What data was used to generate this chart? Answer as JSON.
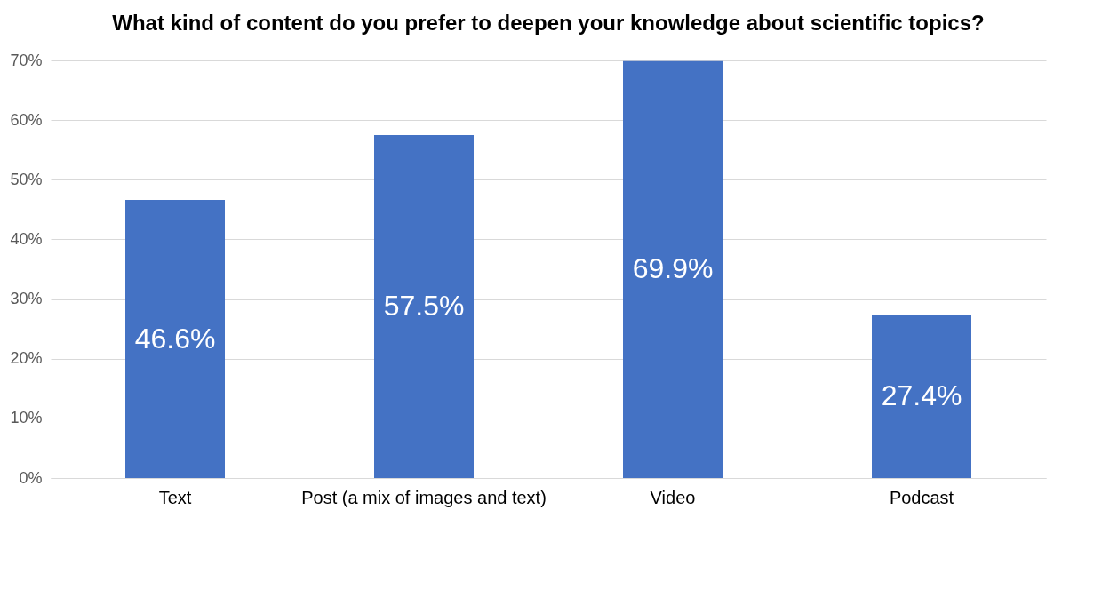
{
  "chart_data": {
    "type": "bar",
    "title": "What kind of content do you prefer to deepen your knowledge about scientific topics?",
    "categories": [
      "Text",
      "Post (a mix of images and text)",
      "Video",
      "Podcast"
    ],
    "values": [
      46.6,
      57.5,
      69.9,
      27.4
    ],
    "color": "#4472c4",
    "value_labels": [
      "46.6%",
      "57.5%",
      "69.9%",
      "27.4%"
    ],
    "ylim": [
      0,
      70
    ],
    "yticks": [
      {
        "value": 0,
        "label": "0%"
      },
      {
        "value": 10,
        "label": "10%"
      },
      {
        "value": 20,
        "label": "20%"
      },
      {
        "value": 30,
        "label": "30%"
      },
      {
        "value": 40,
        "label": "40%"
      },
      {
        "value": 50,
        "label": "50%"
      },
      {
        "value": 60,
        "label": "60%"
      },
      {
        "value": 70,
        "label": "70%"
      }
    ],
    "grid": "y"
  }
}
